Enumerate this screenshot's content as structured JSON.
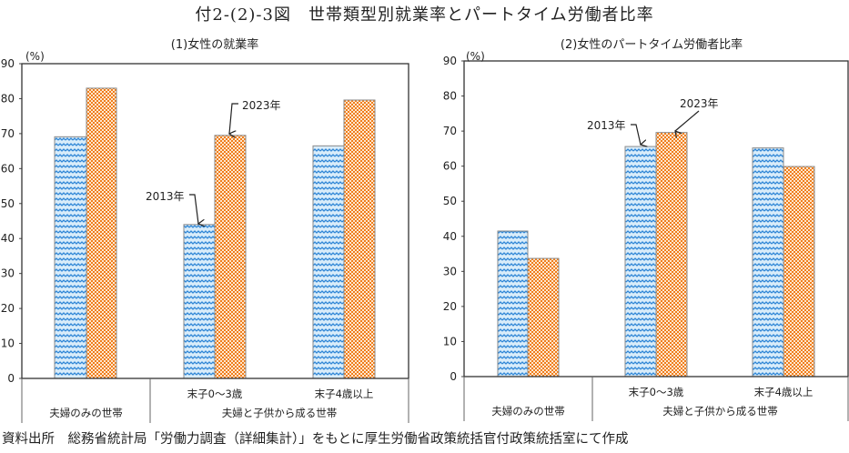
{
  "title": "付2-(2)-3図　世帯類型別就業率とパートタイム労働者比率",
  "source": "資料出所　総務省統計局「労働力調査（詳細集計）」をもとに厚生労働省政策統括官付政策統括室にて作成",
  "colors": {
    "series_2013": "#2f86d6",
    "series_2013_bg": "#d8ecfa",
    "series_2023": "#f07d1a",
    "series_2023_bg": "#fde7cf",
    "axis": "#444444"
  },
  "chart_data": [
    {
      "type": "bar",
      "title": "(1)女性の就業率",
      "ylabel": "(%)",
      "ylim": [
        0,
        90
      ],
      "yticks": [
        "0",
        "10",
        "20",
        "30",
        "40",
        "50",
        "60",
        "70",
        "80",
        "90"
      ],
      "categories": [
        "",
        "末子0～3歳",
        "末子4歳以上"
      ],
      "groups": [
        {
          "label": "夫婦のみの世帯",
          "span": [
            0,
            0
          ]
        },
        {
          "label": "夫婦と子供から成る世帯",
          "span": [
            1,
            2
          ]
        }
      ],
      "series": [
        {
          "name": "2013年",
          "values": [
            69.1,
            44.0,
            66.5
          ]
        },
        {
          "name": "2023年",
          "values": [
            83.0,
            69.5,
            79.6
          ]
        }
      ],
      "annotations": [
        {
          "text": "2013年",
          "series": 0,
          "category": 1
        },
        {
          "text": "2023年",
          "series": 1,
          "category": 1
        }
      ]
    },
    {
      "type": "bar",
      "title": "(2)女性のパートタイム労働者比率",
      "ylabel": "(%)",
      "ylim": [
        0,
        90
      ],
      "yticks": [
        "0",
        "10",
        "20",
        "30",
        "40",
        "50",
        "60",
        "70",
        "80",
        "90"
      ],
      "categories": [
        "",
        "末子0～3歳",
        "末子4歳以上"
      ],
      "groups": [
        {
          "label": "夫婦のみの世帯",
          "span": [
            0,
            0
          ]
        },
        {
          "label": "夫婦と子供から成る世帯",
          "span": [
            1,
            2
          ]
        }
      ],
      "series": [
        {
          "name": "2013年",
          "values": [
            41.5,
            65.6,
            65.2
          ]
        },
        {
          "name": "2023年",
          "values": [
            33.7,
            69.6,
            59.9
          ]
        }
      ],
      "annotations": [
        {
          "text": "2013年",
          "series": 0,
          "category": 1
        },
        {
          "text": "2023年",
          "series": 1,
          "category": 1
        }
      ]
    }
  ]
}
